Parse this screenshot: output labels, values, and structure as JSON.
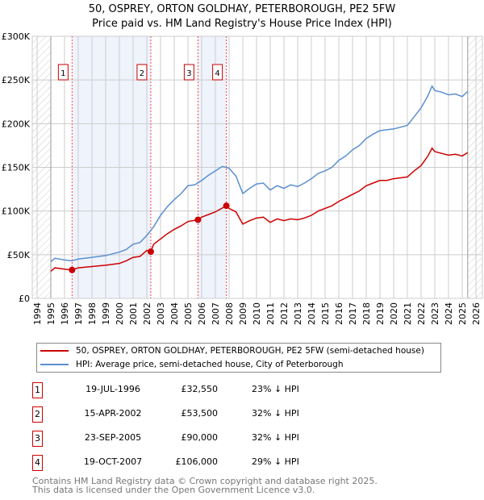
{
  "chart_data": {
    "type": "line",
    "title": "50, OSPREY, ORTON GOLDHAY, PETERBOROUGH, PE2 5FW",
    "subtitle": "Price paid vs. HM Land Registry's House Price Index (HPI)",
    "xlim": [
      1994,
      2026
    ],
    "ylim": [
      0,
      300000
    ],
    "x_ticks": [
      "1994",
      "1995",
      "1996",
      "1997",
      "1998",
      "1999",
      "2000",
      "2001",
      "2002",
      "2003",
      "2004",
      "2005",
      "2006",
      "2007",
      "2008",
      "2009",
      "2010",
      "2011",
      "2012",
      "2013",
      "2014",
      "2015",
      "2016",
      "2017",
      "2018",
      "2019",
      "2020",
      "2021",
      "2022",
      "2023",
      "2024",
      "2025",
      "2026"
    ],
    "y_ticks": [
      {
        "v": 0,
        "label": "£0"
      },
      {
        "v": 50000,
        "label": "£50K"
      },
      {
        "v": 100000,
        "label": "£100K"
      },
      {
        "v": 150000,
        "label": "£150K"
      },
      {
        "v": 200000,
        "label": "£200K"
      },
      {
        "v": 250000,
        "label": "£250K"
      },
      {
        "v": 300000,
        "label": "£300K"
      }
    ],
    "grid": true,
    "series": [
      {
        "name": "50, OSPREY, ORTON GOLDHAY, PETERBOROUGH, PE2 5FW (semi-detached house)",
        "color": "#cc0000",
        "x": [
          1995,
          1995.3,
          1996,
          1996.55,
          1997,
          1998,
          1999,
          2000,
          2000.5,
          2001,
          2001.5,
          2002,
          2002.29,
          2002.5,
          2003,
          2003.5,
          2004,
          2004.5,
          2005,
          2005.73,
          2006,
          2006.5,
          2007,
          2007.8,
          2008,
          2008.5,
          2009,
          2009.5,
          2010,
          2010.5,
          2011,
          2011.5,
          2012,
          2012.5,
          2013,
          2013.5,
          2014,
          2014.5,
          2015,
          2015.5,
          2016,
          2016.5,
          2017,
          2017.5,
          2018,
          2018.5,
          2019,
          2019.5,
          2020,
          2020.5,
          2021,
          2021.5,
          2022,
          2022.5,
          2022.8,
          2023,
          2023.5,
          2024,
          2024.5,
          2025,
          2025.4
        ],
        "y": [
          31,
          35,
          33.5,
          32.55,
          35,
          36.5,
          38,
          40,
          43,
          47,
          48,
          55,
          53.5,
          62,
          68,
          74,
          79,
          83,
          88,
          90,
          93,
          96,
          99,
          106,
          103,
          99,
          85,
          89,
          92,
          93,
          87,
          91,
          89,
          91,
          90,
          92,
          95,
          100,
          103,
          106,
          111,
          115,
          119,
          123,
          129,
          132,
          135,
          135,
          137,
          138,
          139,
          146,
          152,
          163,
          172,
          168,
          166,
          164,
          165,
          163,
          167
        ]
      },
      {
        "name": "HPI: Average price, semi-detached house, City of Peterborough",
        "color": "#5b8fd0",
        "x": [
          1995,
          1995.3,
          1996,
          1996.5,
          1997,
          1998,
          1999,
          2000,
          2000.5,
          2001,
          2001.5,
          2002,
          2002.5,
          2003,
          2003.5,
          2004,
          2004.5,
          2005,
          2005.5,
          2006,
          2006.5,
          2007,
          2007.5,
          2008,
          2008.5,
          2009,
          2009.5,
          2010,
          2010.5,
          2011,
          2011.5,
          2012,
          2012.5,
          2013,
          2013.5,
          2014,
          2014.5,
          2015,
          2015.5,
          2016,
          2016.5,
          2017,
          2017.5,
          2018,
          2018.5,
          2019,
          2019.5,
          2020,
          2020.5,
          2021,
          2021.5,
          2022,
          2022.5,
          2022.8,
          2023,
          2023.5,
          2024,
          2024.5,
          2025,
          2025.4
        ],
        "y": [
          42,
          46,
          44,
          43,
          45,
          47,
          49,
          53,
          56,
          62,
          64,
          72,
          82,
          95,
          105,
          113,
          120,
          129,
          130,
          135,
          141,
          146,
          151,
          149,
          140,
          120,
          126,
          131,
          132,
          124,
          129,
          126,
          130,
          128,
          132,
          137,
          143,
          146,
          150,
          158,
          163,
          170,
          175,
          183,
          188,
          192,
          193,
          194,
          196,
          198,
          208,
          218,
          232,
          243,
          238,
          236,
          233,
          234,
          231,
          237
        ]
      }
    ],
    "y_units": "thousands GBP",
    "sales": [
      {
        "n": "1",
        "x": 1996.55,
        "y": 32.55
      },
      {
        "n": "2",
        "x": 2002.29,
        "y": 53.5
      },
      {
        "n": "3",
        "x": 2005.73,
        "y": 90
      },
      {
        "n": "4",
        "x": 2007.8,
        "y": 106
      }
    ]
  },
  "legend": {
    "red": "50, OSPREY, ORTON GOLDHAY, PETERBOROUGH, PE2 5FW (semi-detached house)",
    "blue": "HPI: Average price, semi-detached house, City of Peterborough"
  },
  "table": [
    {
      "n": "1",
      "date": "19-JUL-1996",
      "price": "£32,550",
      "hpi": "23% ↓ HPI"
    },
    {
      "n": "2",
      "date": "15-APR-2002",
      "price": "£53,500",
      "hpi": "32% ↓ HPI"
    },
    {
      "n": "3",
      "date": "23-SEP-2005",
      "price": "£90,000",
      "hpi": "32% ↓ HPI"
    },
    {
      "n": "4",
      "date": "19-OCT-2007",
      "price": "£106,000",
      "hpi": "29% ↓ HPI"
    }
  ],
  "footer": {
    "line1": "Contains HM Land Registry data © Crown copyright and database right 2025.",
    "line2": "This data is licensed under the Open Government Licence v3.0."
  }
}
